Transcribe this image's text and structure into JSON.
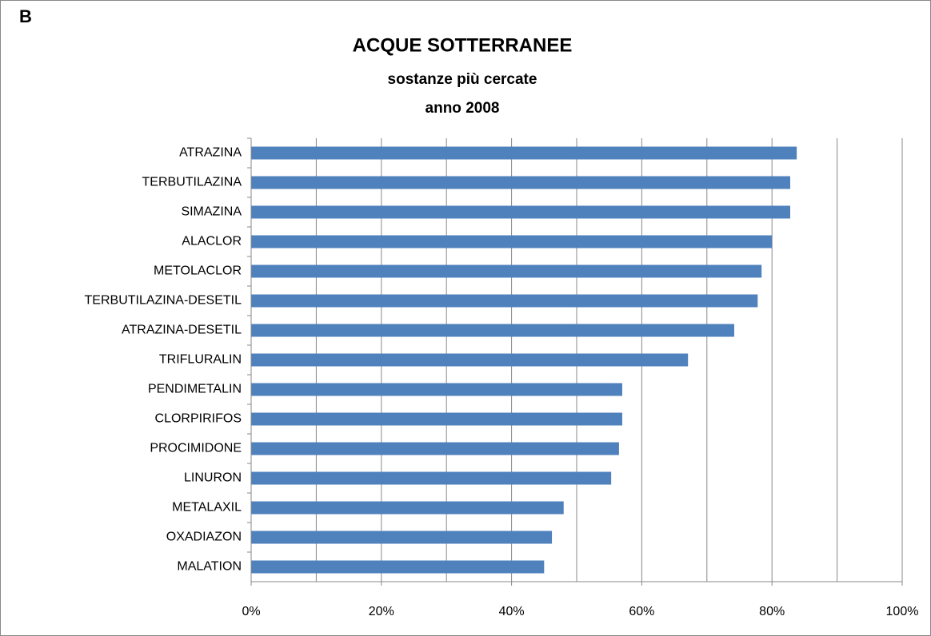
{
  "chart_data": {
    "type": "bar",
    "orientation": "horizontal",
    "panel": "B",
    "title": "ACQUE SOTTERRANEE",
    "subtitle": [
      "sostanze più cercate",
      "anno 2008"
    ],
    "categories": [
      "ATRAZINA",
      "TERBUTILAZINA",
      "SIMAZINA",
      "ALACLOR",
      "METOLACLOR",
      "TERBUTILAZINA-DESETIL",
      "ATRAZINA-DESETIL",
      "TRIFLURALIN",
      "PENDIMETALIN",
      "CLORPIRIFOS",
      "PROCIMIDONE",
      "LINURON",
      "METALAXIL",
      "OXADIAZON",
      "MALATION"
    ],
    "values": [
      83.8,
      82.8,
      82.8,
      80,
      78.4,
      77.8,
      74.2,
      67.1,
      57,
      57,
      56.5,
      55.3,
      48,
      46.2,
      45
    ],
    "color": "#4f81bd",
    "xlim": [
      0,
      100
    ],
    "xticks": [
      {
        "value": 0,
        "label": "0%"
      },
      {
        "value": 20,
        "label": "20%"
      },
      {
        "value": 40,
        "label": "40%"
      },
      {
        "value": 60,
        "label": "60%"
      },
      {
        "value": 80,
        "label": "80%"
      },
      {
        "value": 100,
        "label": "100%"
      }
    ],
    "xminor": [
      10,
      30,
      50,
      70,
      90
    ],
    "grid": true
  }
}
